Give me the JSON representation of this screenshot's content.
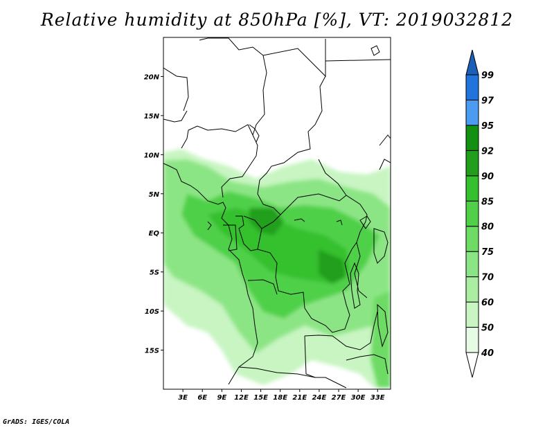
{
  "title": "Relative humidity at 850hPa [%], VT: 2019032812",
  "credit": "GrADS: IGES/COLA",
  "map": {
    "lon_range": [
      0,
      35
    ],
    "lat_range": [
      -20,
      25
    ],
    "y_ticks": [
      {
        "lat": 20,
        "label": "20N"
      },
      {
        "lat": 15,
        "label": "15N"
      },
      {
        "lat": 10,
        "label": "10N"
      },
      {
        "lat": 5,
        "label": "5N"
      },
      {
        "lat": 0,
        "label": "EQ"
      },
      {
        "lat": -5,
        "label": "5S"
      },
      {
        "lat": -10,
        "label": "10S"
      },
      {
        "lat": -15,
        "label": "15S"
      }
    ],
    "x_ticks": [
      {
        "lon": 3,
        "label": "3E"
      },
      {
        "lon": 6,
        "label": "6E"
      },
      {
        "lon": 9,
        "label": "9E"
      },
      {
        "lon": 12,
        "label": "12E"
      },
      {
        "lon": 15,
        "label": "15E"
      },
      {
        "lon": 18,
        "label": "18E"
      },
      {
        "lon": 21,
        "label": "21E"
      },
      {
        "lon": 24,
        "label": "24E"
      },
      {
        "lon": 27,
        "label": "27E"
      },
      {
        "lon": 30,
        "label": "30E"
      },
      {
        "lon": 33,
        "label": "33E"
      }
    ]
  },
  "colorbar": {
    "levels": [
      "40",
      "50",
      "60",
      "70",
      "75",
      "80",
      "85",
      "90",
      "92",
      "95",
      "97",
      "99"
    ],
    "colors": [
      "#ffffff",
      "#e6fbe3",
      "#c8f5c2",
      "#aaeea2",
      "#8ce584",
      "#6edb65",
      "#50d048",
      "#36c02e",
      "#219f1c",
      "#129012",
      "#4b9cf0",
      "#2174dc",
      "#1c5fb7"
    ]
  }
}
